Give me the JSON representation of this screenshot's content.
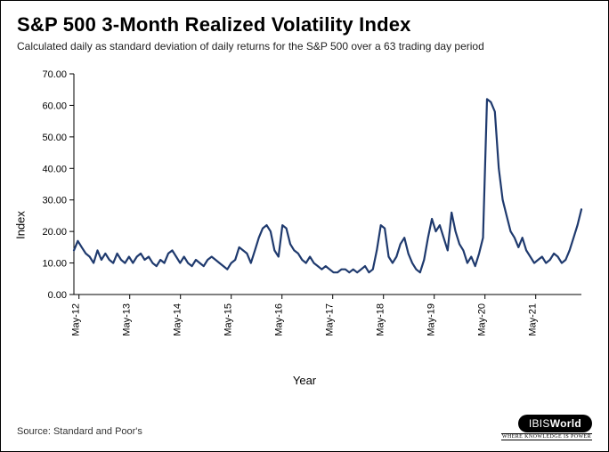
{
  "chart": {
    "type": "line",
    "title": "S&P 500 3-Month Realized Volatility Index",
    "subtitle": "Calculated daily as standard deviation of daily returns for the S&P 500 over a 63 trading day period",
    "y_label": "Index",
    "x_label": "Year",
    "source": "Source: Standard and Poor's",
    "logo_text_a": "IBIS",
    "logo_text_b": "World",
    "logo_tagline": "WHERE KNOWLEDGE IS POWER",
    "background_color": "#ffffff",
    "axis_color": "#000000",
    "line_color": "#1f3a6e",
    "line_width": 2.2,
    "ylim": [
      0,
      70
    ],
    "ytick_step": 10,
    "yticks": [
      0.0,
      10.0,
      20.0,
      30.0,
      40.0,
      50.0,
      60.0,
      70.0
    ],
    "xticks": [
      "May-12",
      "May-13",
      "May-14",
      "May-15",
      "May-16",
      "May-17",
      "May-18",
      "May-19",
      "May-20",
      "May-21"
    ],
    "title_fontsize": 22,
    "subtitle_fontsize": 12,
    "axis_label_fontsize": 13,
    "tick_fontsize": 11,
    "series": [
      14,
      17,
      15,
      13,
      12,
      10,
      14,
      11,
      13,
      11,
      10,
      13,
      11,
      10,
      12,
      10,
      12,
      13,
      11,
      12,
      10,
      9,
      11,
      10,
      13,
      14,
      12,
      10,
      12,
      10,
      9,
      11,
      10,
      9,
      11,
      12,
      11,
      10,
      9,
      8,
      10,
      11,
      15,
      14,
      13,
      10,
      14,
      18,
      21,
      22,
      20,
      14,
      12,
      22,
      21,
      16,
      14,
      13,
      11,
      10,
      12,
      10,
      9,
      8,
      9,
      8,
      7,
      7,
      8,
      8,
      7,
      8,
      7,
      8,
      9,
      7,
      8,
      14,
      22,
      21,
      12,
      10,
      12,
      16,
      18,
      13,
      10,
      8,
      7,
      11,
      18,
      24,
      20,
      22,
      18,
      14,
      26,
      20,
      16,
      14,
      10,
      12,
      9,
      13,
      18,
      62,
      61,
      58,
      40,
      30,
      25,
      20,
      18,
      15,
      18,
      14,
      12,
      10,
      11,
      12,
      10,
      11,
      13,
      12,
      10,
      11,
      14,
      18,
      22,
      27
    ]
  }
}
